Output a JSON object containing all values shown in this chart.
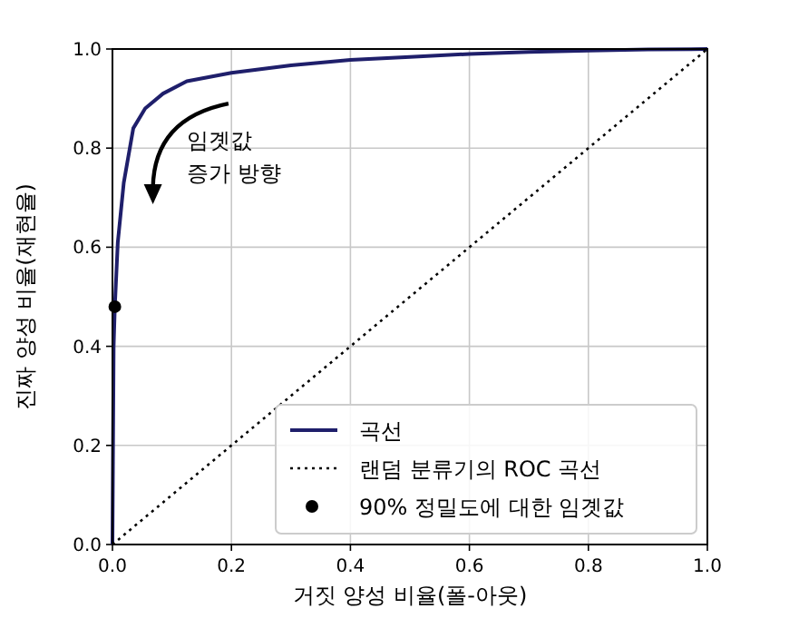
{
  "chart_data": {
    "type": "line",
    "xlabel": "거짓 양성 비율(폴-아웃)",
    "ylabel": "진짜 양성 비율(재현율)",
    "xlim": [
      0,
      1
    ],
    "ylim": [
      0,
      1
    ],
    "xticks": [
      {
        "value": 0,
        "label": "0.0"
      },
      0.2,
      0.4,
      0.6,
      0.8,
      {
        "value": 1,
        "label": "1.0"
      }
    ],
    "yticks": [
      {
        "value": 0,
        "label": "0.0"
      },
      0.2,
      0.4,
      0.6,
      0.8,
      {
        "value": 1,
        "label": "1.0"
      }
    ],
    "grid": true,
    "legend": "bottom right",
    "annotations": [
      "임곗값\n증가 방향"
    ],
    "series": [
      {
        "name": "곡선",
        "color": "#1f1f6b",
        "line_style": "solid",
        "x": [
          0,
          0.001,
          0.002,
          0.004,
          0.009,
          0.019,
          0.035,
          0.055,
          0.085,
          0.125,
          0.2,
          0.3,
          0.4,
          0.5,
          0.6,
          0.7,
          0.8,
          0.9,
          1
        ],
        "values": [
          0,
          0.2,
          0.4,
          0.48,
          0.61,
          0.73,
          0.84,
          0.88,
          0.91,
          0.935,
          0.952,
          0.967,
          0.978,
          0.984,
          0.99,
          0.994,
          0.997,
          0.999,
          1
        ]
      },
      {
        "name": "랜덤 분류기의 ROC 곡선",
        "color": "#000000",
        "line_style": "dotted",
        "x": [
          0,
          1
        ],
        "values": [
          0,
          1
        ]
      },
      {
        "name": "90% 정밀도에 대한 임곗값",
        "type": "scatter",
        "color": "#000000",
        "marker": "circle",
        "x": [
          0.004
        ],
        "values": [
          0.48
        ]
      }
    ]
  }
}
